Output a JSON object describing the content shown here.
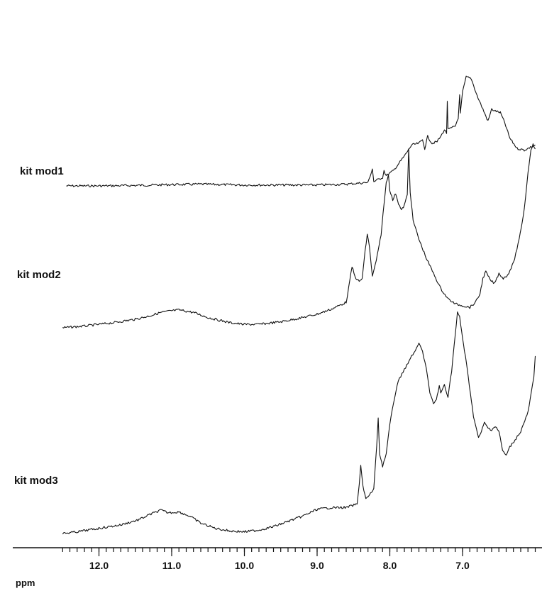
{
  "chart_data": {
    "type": "line",
    "xlabel": "ppm",
    "x_reversed": true,
    "xlim": [
      12.5,
      6.0
    ],
    "major_ticks": [
      12.0,
      11.0,
      10.0,
      9.0,
      8.0,
      7.0
    ],
    "tick_labels": [
      "12.0",
      "11.0",
      "10.0",
      "9.0",
      "8.0",
      "7.0"
    ],
    "minor_tick_step": 0.1,
    "grid": false,
    "series": [
      {
        "name": "kit mod1",
        "points": [
          [
            12.45,
            0.0
          ],
          [
            12.0,
            0.0
          ],
          [
            11.5,
            0.005
          ],
          [
            11.0,
            0.015
          ],
          [
            10.6,
            0.02
          ],
          [
            10.0,
            0.01
          ],
          [
            9.5,
            0.01
          ],
          [
            9.0,
            0.01
          ],
          [
            8.6,
            0.02
          ],
          [
            8.3,
            0.04
          ],
          [
            8.24,
            0.2
          ],
          [
            8.22,
            0.05
          ],
          [
            8.1,
            0.1
          ],
          [
            8.08,
            0.18
          ],
          [
            8.05,
            0.12
          ],
          [
            7.95,
            0.18
          ],
          [
            7.8,
            0.35
          ],
          [
            7.7,
            0.48
          ],
          [
            7.6,
            0.5
          ],
          [
            7.55,
            0.54
          ],
          [
            7.52,
            0.44
          ],
          [
            7.48,
            0.58
          ],
          [
            7.42,
            0.5
          ],
          [
            7.35,
            0.52
          ],
          [
            7.3,
            0.58
          ],
          [
            7.25,
            0.66
          ],
          [
            7.22,
            0.62
          ],
          [
            7.21,
            1.0
          ],
          [
            7.2,
            0.66
          ],
          [
            7.15,
            0.68
          ],
          [
            7.1,
            0.7
          ],
          [
            7.06,
            0.8
          ],
          [
            7.04,
            1.06
          ],
          [
            7.03,
            0.85
          ],
          [
            7.0,
            1.1
          ],
          [
            6.95,
            1.28
          ],
          [
            6.88,
            1.26
          ],
          [
            6.8,
            1.06
          ],
          [
            6.72,
            0.9
          ],
          [
            6.65,
            0.76
          ],
          [
            6.6,
            0.9
          ],
          [
            6.55,
            0.88
          ],
          [
            6.48,
            0.86
          ],
          [
            6.42,
            0.74
          ],
          [
            6.35,
            0.56
          ],
          [
            6.25,
            0.44
          ],
          [
            6.15,
            0.42
          ],
          [
            6.05,
            0.46
          ],
          [
            6.0,
            0.48
          ]
        ]
      },
      {
        "name": "kit mod2",
        "points": [
          [
            12.5,
            0.0
          ],
          [
            12.2,
            0.02
          ],
          [
            11.8,
            0.06
          ],
          [
            11.5,
            0.1
          ],
          [
            11.3,
            0.14
          ],
          [
            11.15,
            0.18
          ],
          [
            11.0,
            0.2
          ],
          [
            10.9,
            0.21
          ],
          [
            10.7,
            0.18
          ],
          [
            10.5,
            0.12
          ],
          [
            10.2,
            0.06
          ],
          [
            10.0,
            0.04
          ],
          [
            9.8,
            0.04
          ],
          [
            9.5,
            0.07
          ],
          [
            9.2,
            0.12
          ],
          [
            9.0,
            0.16
          ],
          [
            8.8,
            0.22
          ],
          [
            8.6,
            0.3
          ],
          [
            8.55,
            0.55
          ],
          [
            8.52,
            0.72
          ],
          [
            8.48,
            0.6
          ],
          [
            8.42,
            0.54
          ],
          [
            8.38,
            0.58
          ],
          [
            8.34,
            0.9
          ],
          [
            8.31,
            1.1
          ],
          [
            8.28,
            0.95
          ],
          [
            8.24,
            0.6
          ],
          [
            8.2,
            0.74
          ],
          [
            8.16,
            0.9
          ],
          [
            8.12,
            1.1
          ],
          [
            8.08,
            1.45
          ],
          [
            8.05,
            1.7
          ],
          [
            8.02,
            1.8
          ],
          [
            8.0,
            1.62
          ],
          [
            7.96,
            1.5
          ],
          [
            7.92,
            1.58
          ],
          [
            7.88,
            1.46
          ],
          [
            7.84,
            1.38
          ],
          [
            7.8,
            1.44
          ],
          [
            7.76,
            1.56
          ],
          [
            7.74,
            2.1
          ],
          [
            7.72,
            1.6
          ],
          [
            7.68,
            1.26
          ],
          [
            7.6,
            1.04
          ],
          [
            7.5,
            0.82
          ],
          [
            7.4,
            0.64
          ],
          [
            7.3,
            0.46
          ],
          [
            7.2,
            0.34
          ],
          [
            7.1,
            0.28
          ],
          [
            7.0,
            0.26
          ],
          [
            6.9,
            0.24
          ],
          [
            6.82,
            0.3
          ],
          [
            6.76,
            0.4
          ],
          [
            6.72,
            0.58
          ],
          [
            6.68,
            0.66
          ],
          [
            6.62,
            0.56
          ],
          [
            6.56,
            0.52
          ],
          [
            6.5,
            0.64
          ],
          [
            6.44,
            0.58
          ],
          [
            6.38,
            0.62
          ],
          [
            6.3,
            0.76
          ],
          [
            6.22,
            1.04
          ],
          [
            6.15,
            1.4
          ],
          [
            6.1,
            1.82
          ],
          [
            6.06,
            2.1
          ],
          [
            6.03,
            2.15
          ],
          [
            6.0,
            2.1
          ]
        ]
      },
      {
        "name": "kit mod3",
        "points": [
          [
            12.5,
            0.0
          ],
          [
            12.3,
            0.02
          ],
          [
            12.0,
            0.06
          ],
          [
            11.7,
            0.1
          ],
          [
            11.45,
            0.16
          ],
          [
            11.3,
            0.22
          ],
          [
            11.15,
            0.27
          ],
          [
            11.05,
            0.24
          ],
          [
            10.9,
            0.25
          ],
          [
            10.75,
            0.2
          ],
          [
            10.6,
            0.12
          ],
          [
            10.4,
            0.06
          ],
          [
            10.2,
            0.03
          ],
          [
            10.0,
            0.02
          ],
          [
            9.8,
            0.04
          ],
          [
            9.6,
            0.08
          ],
          [
            9.4,
            0.14
          ],
          [
            9.2,
            0.2
          ],
          [
            9.0,
            0.28
          ],
          [
            8.8,
            0.3
          ],
          [
            8.6,
            0.3
          ],
          [
            8.45,
            0.34
          ],
          [
            8.42,
            0.56
          ],
          [
            8.4,
            0.8
          ],
          [
            8.37,
            0.55
          ],
          [
            8.33,
            0.4
          ],
          [
            8.28,
            0.44
          ],
          [
            8.22,
            0.52
          ],
          [
            8.18,
            1.02
          ],
          [
            8.16,
            1.34
          ],
          [
            8.14,
            0.92
          ],
          [
            8.1,
            0.78
          ],
          [
            8.05,
            0.92
          ],
          [
            8.0,
            1.26
          ],
          [
            7.95,
            1.5
          ],
          [
            7.9,
            1.72
          ],
          [
            7.85,
            1.82
          ],
          [
            7.8,
            1.9
          ],
          [
            7.75,
            1.96
          ],
          [
            7.7,
            2.06
          ],
          [
            7.65,
            2.1
          ],
          [
            7.6,
            2.2
          ],
          [
            7.55,
            2.1
          ],
          [
            7.5,
            1.92
          ],
          [
            7.45,
            1.62
          ],
          [
            7.4,
            1.5
          ],
          [
            7.36,
            1.55
          ],
          [
            7.32,
            1.7
          ],
          [
            7.3,
            1.62
          ],
          [
            7.25,
            1.72
          ],
          [
            7.2,
            1.58
          ],
          [
            7.15,
            1.88
          ],
          [
            7.1,
            2.3
          ],
          [
            7.07,
            2.55
          ],
          [
            7.04,
            2.5
          ],
          [
            7.0,
            2.26
          ],
          [
            6.96,
            2.04
          ],
          [
            6.92,
            1.8
          ],
          [
            6.85,
            1.36
          ],
          [
            6.78,
            1.1
          ],
          [
            6.74,
            1.18
          ],
          [
            6.7,
            1.28
          ],
          [
            6.65,
            1.22
          ],
          [
            6.6,
            1.2
          ],
          [
            6.55,
            1.24
          ],
          [
            6.5,
            1.18
          ],
          [
            6.45,
            0.96
          ],
          [
            6.4,
            0.9
          ],
          [
            6.35,
            1.0
          ],
          [
            6.28,
            1.08
          ],
          [
            6.2,
            1.18
          ],
          [
            6.1,
            1.4
          ],
          [
            6.02,
            1.8
          ],
          [
            6.0,
            2.05
          ]
        ]
      }
    ]
  }
}
